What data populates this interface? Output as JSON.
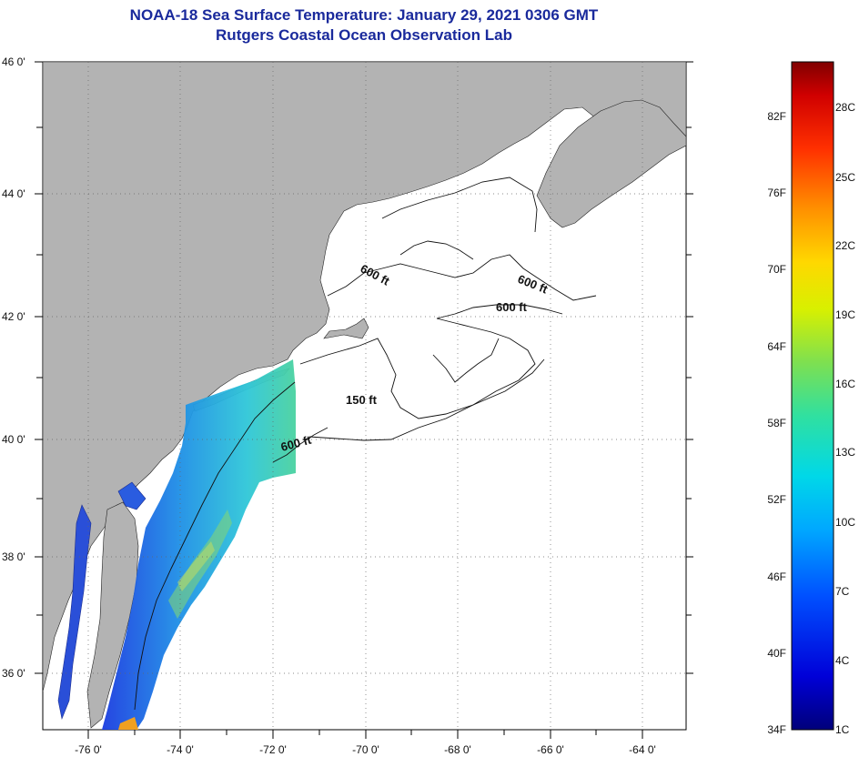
{
  "header": {
    "title": "NOAA-18 Sea Surface Temperature:  January 29, 2021 0306 GMT",
    "subtitle": "Rutgers Coastal Ocean Observation Lab"
  },
  "map": {
    "lat_labels": [
      "46 0'",
      "44 0'",
      "42 0'",
      "40 0'",
      "38 0'",
      "36 0'"
    ],
    "lon_labels": [
      "-76 0'",
      "-74 0'",
      "-72 0'",
      "-70 0'",
      "-68 0'",
      "-66 0'",
      "-64 0'"
    ],
    "contour_labels": [
      "600 ft",
      "600 ft",
      "600 ft",
      "150 ft",
      "600 ft"
    ],
    "colors": {
      "land": "#b3b3b3",
      "ocean_nodata": "#ffffff",
      "grid": "#555555"
    }
  },
  "legend": {
    "f_labels": [
      "82F",
      "76F",
      "70F",
      "64F",
      "58F",
      "52F",
      "46F",
      "40F",
      "34F"
    ],
    "c_labels": [
      "28C",
      "25C",
      "22C",
      "19C",
      "16C",
      "13C",
      "10C",
      "7C",
      "4C",
      "1C"
    ]
  }
}
